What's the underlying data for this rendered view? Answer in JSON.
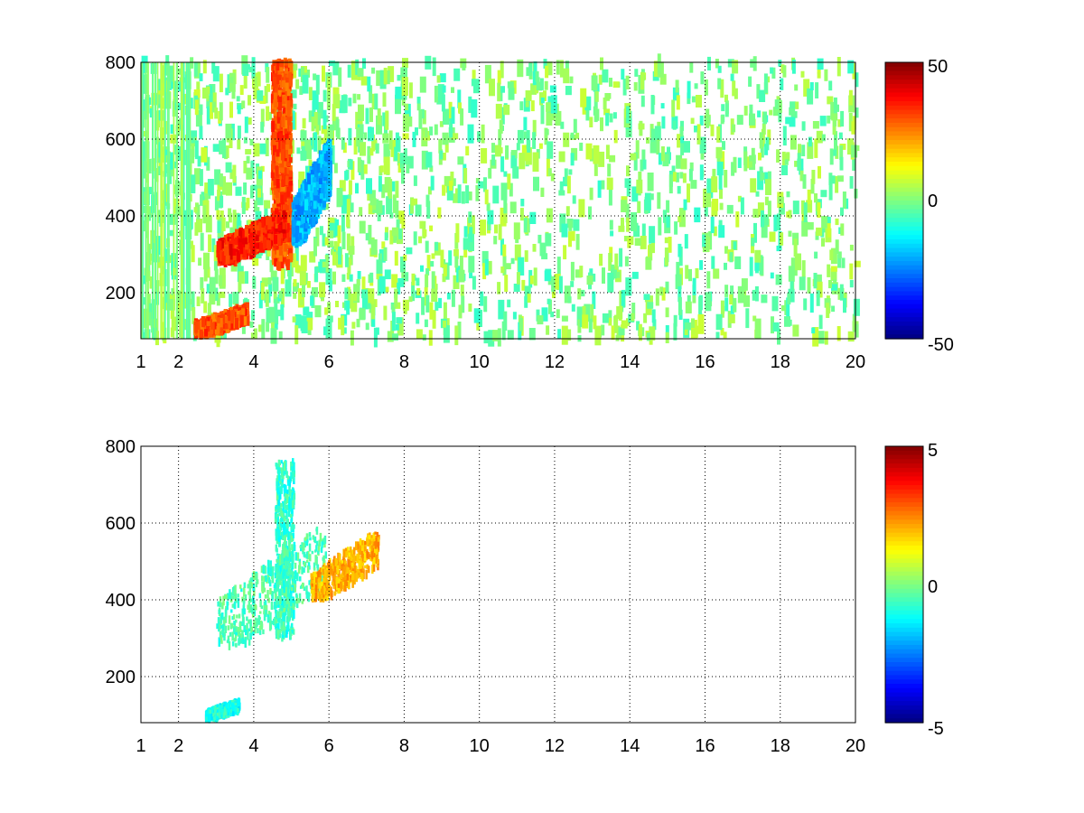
{
  "figure": {
    "background": "#ffffff"
  },
  "chart_data": [
    {
      "type": "heatmap",
      "title": "",
      "xlabel": "",
      "ylabel": "",
      "xlim": [
        1,
        20
      ],
      "ylim": [
        80,
        800
      ],
      "x_ticks": [
        1,
        2,
        4,
        6,
        8,
        10,
        12,
        14,
        16,
        18,
        20
      ],
      "y_ticks": [
        200,
        400,
        600,
        800
      ],
      "x_tick_labels": [
        "1",
        "2",
        "4",
        "6",
        "8",
        "10",
        "12",
        "14",
        "16",
        "18",
        "20"
      ],
      "y_tick_labels": [
        "200",
        "400",
        "600",
        "800"
      ],
      "grid": true,
      "grid_style": "dotted",
      "colormap": "jet",
      "colorbar": {
        "range": [
          -50,
          50
        ],
        "tick_labels": [
          "50",
          "0",
          "-50"
        ]
      },
      "features": [
        {
          "x": 4.7,
          "y": [
            270,
            800
          ],
          "value": 30,
          "description_of_shape": "band"
        },
        {
          "x": [
            3.0,
            4.8
          ],
          "y": [
            280,
            420
          ],
          "value": 35
        },
        {
          "x": [
            5.0,
            6.0
          ],
          "y": [
            330,
            620
          ],
          "value": -20
        },
        {
          "x": [
            2.4,
            3.8
          ],
          "y": [
            90,
            170
          ],
          "value": 30
        }
      ],
      "noise": {
        "x_range": [
          1,
          20
        ],
        "y_range": [
          80,
          800
        ],
        "value_range": [
          -8,
          8
        ]
      }
    },
    {
      "type": "heatmap",
      "title": "",
      "xlabel": "",
      "ylabel": "",
      "xlim": [
        1,
        20
      ],
      "ylim": [
        80,
        800
      ],
      "x_ticks": [
        1,
        2,
        4,
        6,
        8,
        10,
        12,
        14,
        16,
        18,
        20
      ],
      "y_ticks": [
        200,
        400,
        600,
        800
      ],
      "x_tick_labels": [
        "1",
        "2",
        "4",
        "6",
        "8",
        "10",
        "12",
        "14",
        "16",
        "18",
        "20"
      ],
      "y_tick_labels": [
        "200",
        "400",
        "600",
        "800"
      ],
      "grid": true,
      "grid_style": "dotted",
      "colormap": "jet",
      "colorbar": {
        "range": [
          -5,
          5
        ],
        "tick_labels": [
          "5",
          "0",
          "-5"
        ]
      },
      "features": [
        {
          "x": 4.8,
          "y": [
            300,
            760
          ],
          "value": -0.8
        },
        {
          "x": [
            3.0,
            5.9
          ],
          "y": [
            280,
            620
          ],
          "value": -0.5
        },
        {
          "x": [
            5.5,
            7.3
          ],
          "y": [
            400,
            590
          ],
          "value": 2.0
        },
        {
          "x": [
            2.7,
            3.6
          ],
          "y": [
            90,
            140
          ],
          "value": -1.0
        }
      ]
    }
  ]
}
